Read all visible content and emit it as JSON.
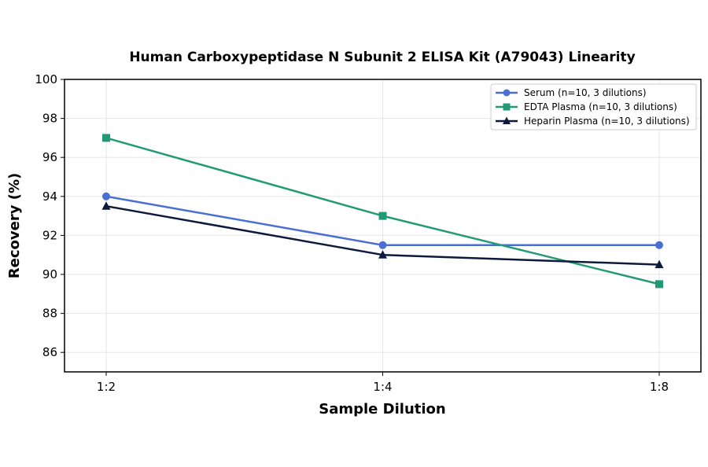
{
  "chart_data": {
    "type": "line",
    "title": "Human Carboxypeptidase N Subunit 2 ELISA Kit (A79043) Linearity",
    "xlabel": "Sample Dilution",
    "ylabel": "Recovery (%)",
    "categories": [
      "1:2",
      "1:4",
      "1:8"
    ],
    "ylim": [
      85,
      100
    ],
    "yticks": [
      86,
      88,
      90,
      92,
      94,
      96,
      98,
      100
    ],
    "grid": true,
    "legend_position": "top-right",
    "series": [
      {
        "name": "Serum (n=10, 3 dilutions)",
        "values": [
          94.0,
          91.5,
          91.5
        ],
        "color": "#4a6fd4",
        "marker": "circle"
      },
      {
        "name": "EDTA Plasma (n=10, 3 dilutions)",
        "values": [
          97.0,
          93.0,
          89.5
        ],
        "color": "#239a76",
        "marker": "square"
      },
      {
        "name": "Heparin Plasma (n=10, 3 dilutions)",
        "values": [
          93.5,
          91.0,
          90.5
        ],
        "color": "#0e1a3c",
        "marker": "triangle"
      }
    ]
  }
}
